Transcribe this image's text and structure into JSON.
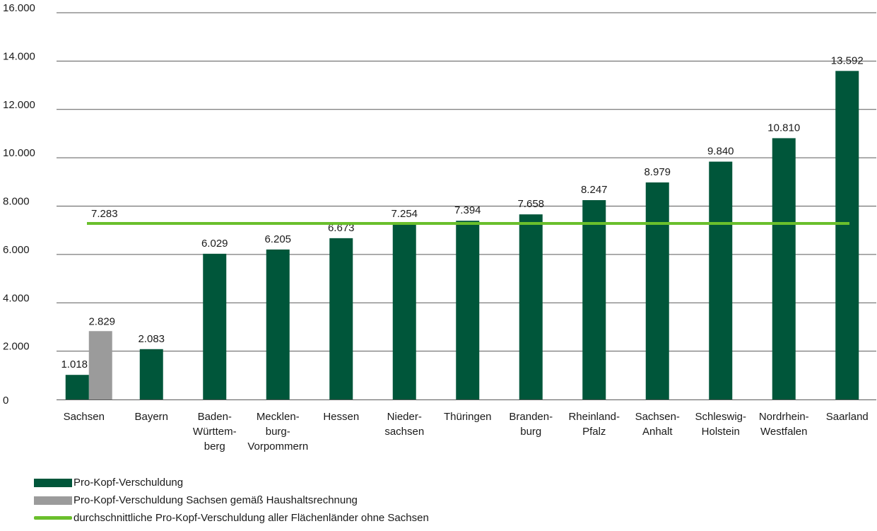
{
  "chart_data": {
    "type": "bar",
    "ylim": [
      0,
      16000
    ],
    "yticks": [
      "0",
      "2.000",
      "4.000",
      "6.000",
      "8.000",
      "10.000",
      "12.000",
      "14.000",
      "16.000"
    ],
    "categories": [
      [
        "Sachsen"
      ],
      [
        "Bayern"
      ],
      [
        "Baden-",
        "Württem-",
        "berg"
      ],
      [
        "Mecklen-",
        "burg-",
        "Vorpommern"
      ],
      [
        "Hessen"
      ],
      [
        "Nieder-",
        "sachsen"
      ],
      [
        "Thüringen"
      ],
      [
        "Branden-",
        "burg"
      ],
      [
        "Rheinland-",
        "Pfalz"
      ],
      [
        "Sachsen-",
        "Anhalt"
      ],
      [
        "Schleswig-",
        "Holstein"
      ],
      [
        "Nordrhein-",
        "Westfalen"
      ],
      [
        "Saarland"
      ]
    ],
    "series": [
      {
        "name": "Pro-Kopf-Verschuldung",
        "color": "#00563a",
        "values": [
          1018,
          2083,
          6029,
          6205,
          6673,
          7254,
          7394,
          7658,
          8247,
          8979,
          9840,
          10810,
          13592
        ],
        "labels": [
          "1.018",
          "2.083",
          "6.029",
          "6.205",
          "6.673",
          "7.254",
          "7.394",
          "7.658",
          "8.247",
          "8.979",
          "9.840",
          "10.810",
          "13.592"
        ]
      },
      {
        "name": "Pro-Kopf-Verschuldung Sachsen gemäß Haushaltsrechnung",
        "color": "#9b9b9b",
        "values": [
          2829,
          null,
          null,
          null,
          null,
          null,
          null,
          null,
          null,
          null,
          null,
          null,
          null
        ],
        "labels": [
          "2.829",
          "",
          "",
          "",
          "",
          "",
          "",
          "",
          "",
          "",
          "",
          "",
          ""
        ]
      }
    ],
    "reference_line": {
      "name": "durchschnittliche Pro-Kopf-Verschuldung aller Flächenländer ohne Sachsen",
      "value": 7283,
      "label": "7.283",
      "color": "#6abf2c"
    },
    "grid": true,
    "legend_position": "bottom-left"
  }
}
